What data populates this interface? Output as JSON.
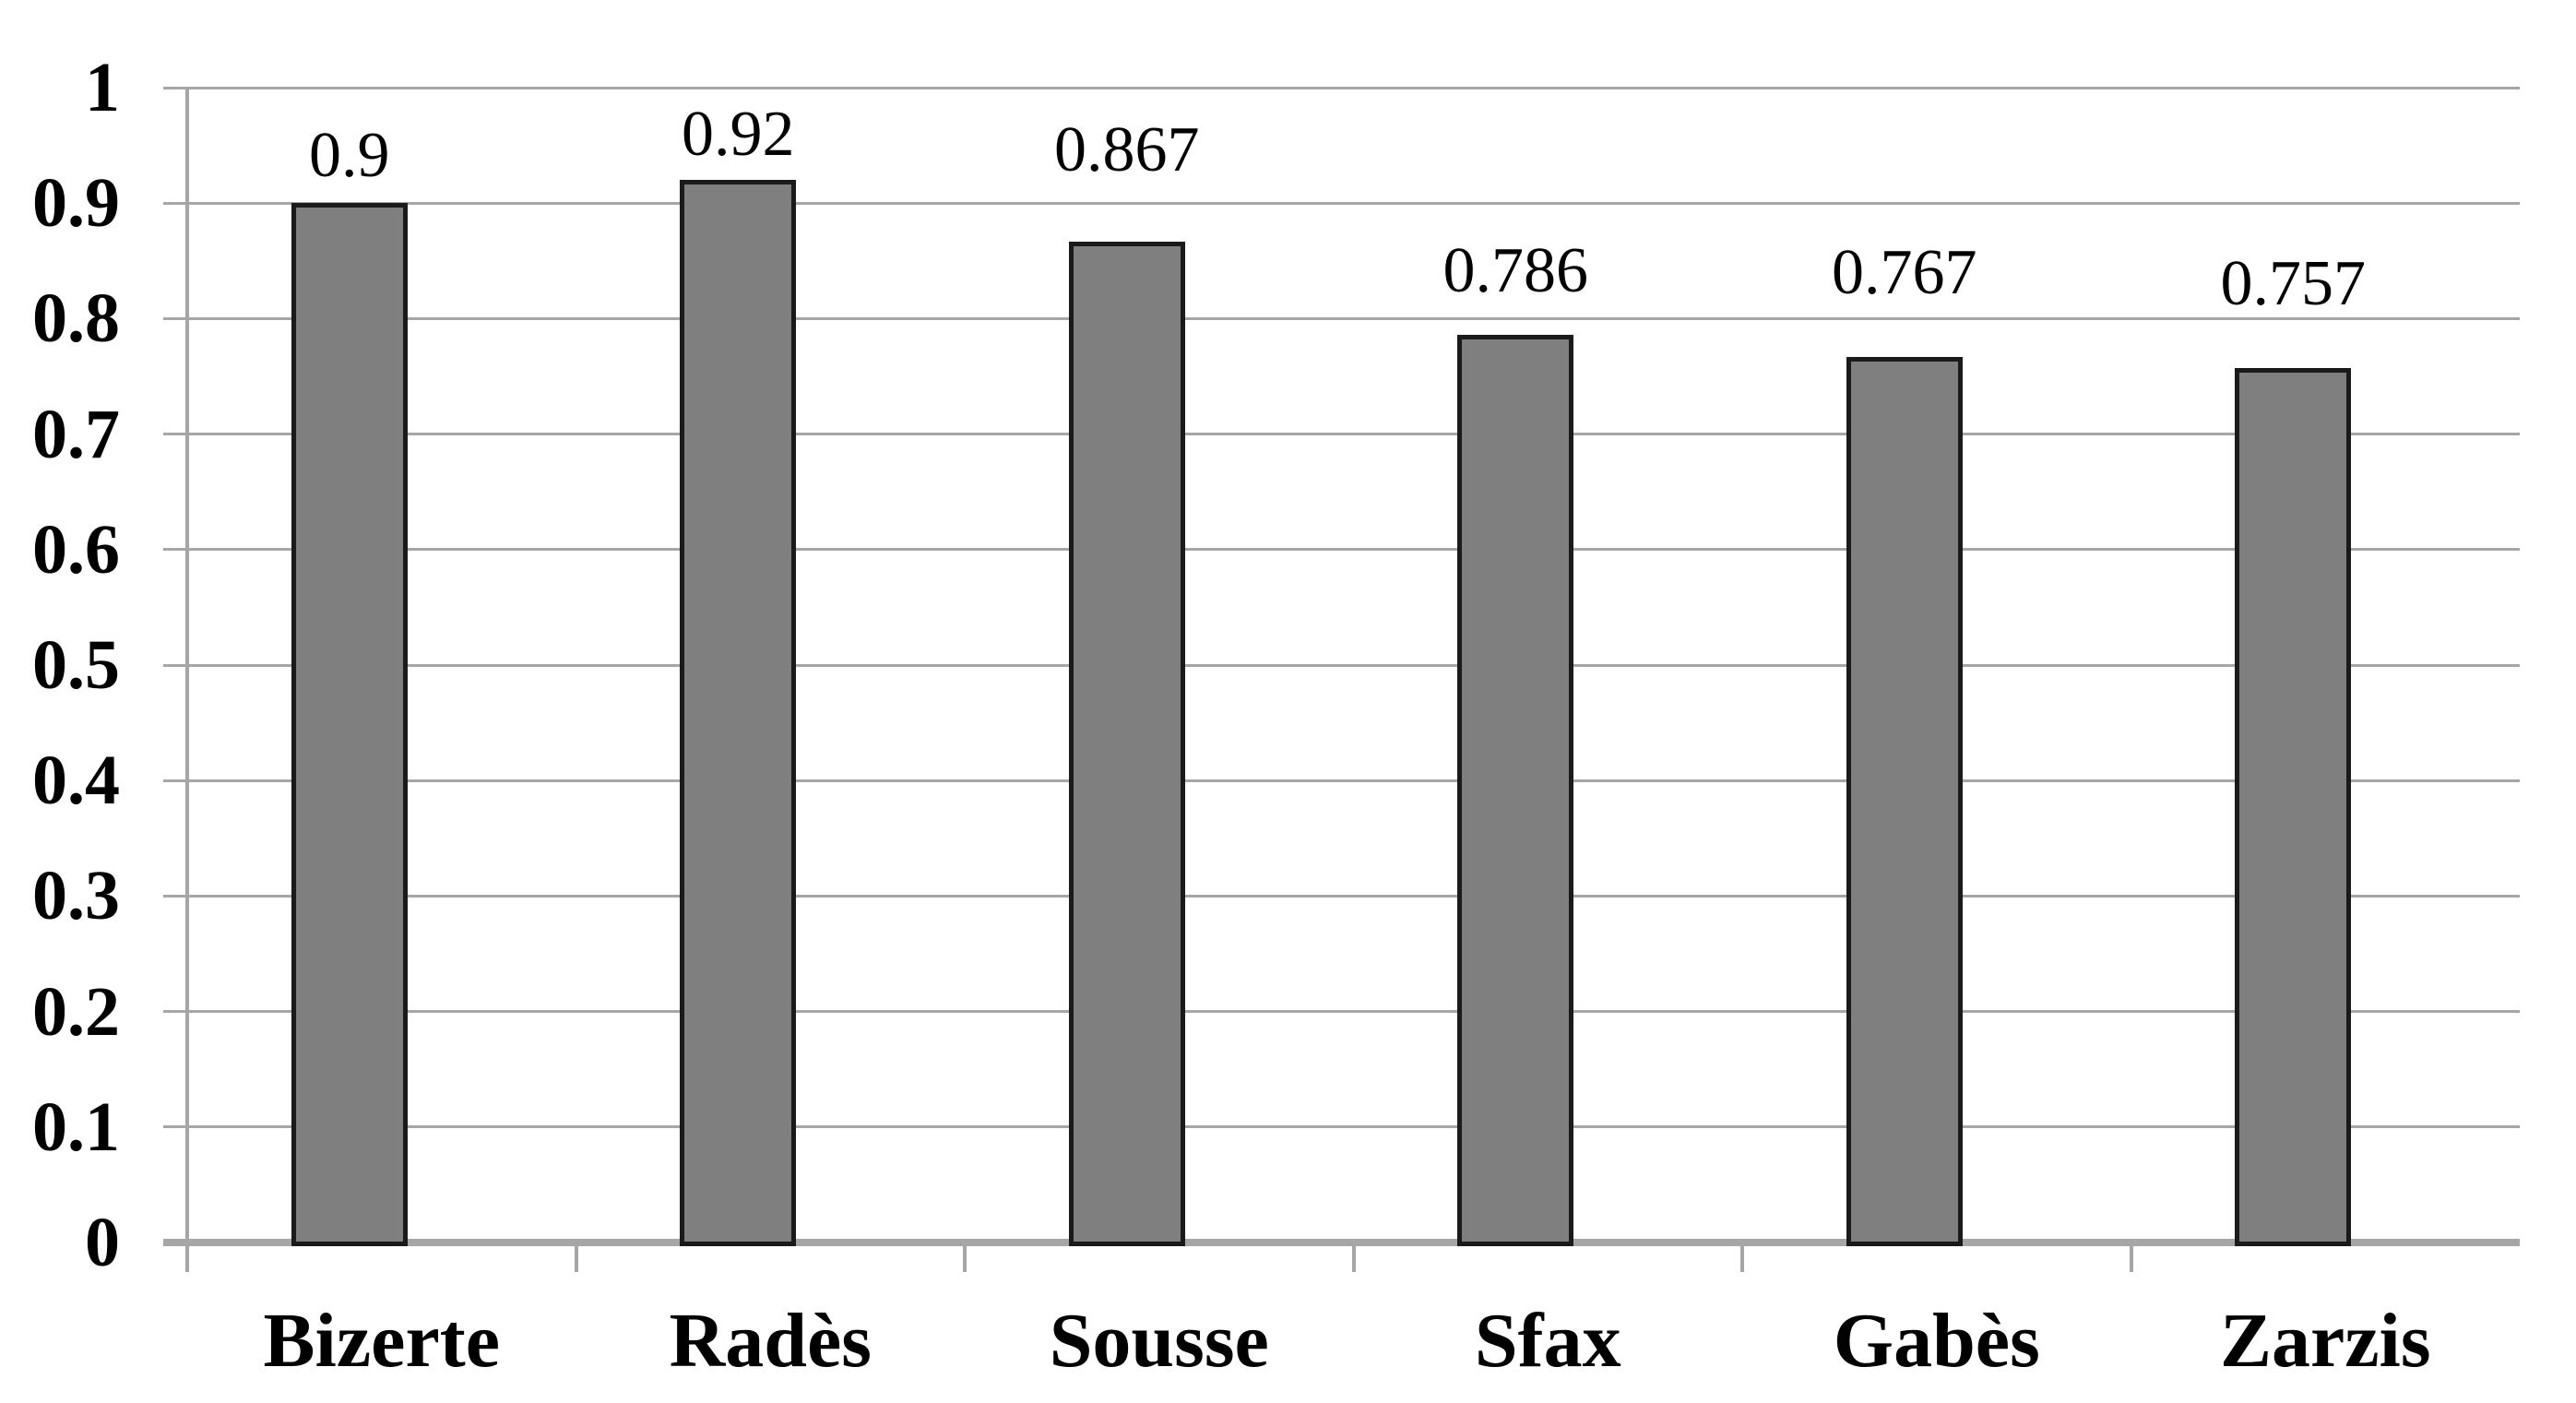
{
  "chart_data": {
    "type": "bar",
    "title": "",
    "categories": [
      "Bizerte",
      "Radès",
      "Sousse",
      "Sfax",
      "Gabès",
      "Zarzis"
    ],
    "values": [
      0.9,
      0.92,
      0.867,
      0.786,
      0.767,
      0.757
    ],
    "value_labels": [
      "0.9",
      "0.92",
      "0.867",
      "0.786",
      "0.767",
      "0.757"
    ],
    "xlabel": "",
    "ylabel": "",
    "ylim": [
      0,
      1
    ],
    "y_tick_values": [
      0,
      0.1,
      0.2,
      0.3,
      0.4,
      0.5,
      0.6,
      0.7,
      0.8,
      0.9,
      1
    ],
    "y_tick_labels": [
      "0",
      "0.1",
      "0.2",
      "0.3",
      "0.4",
      "0.5",
      "0.6",
      "0.7",
      "0.8",
      "0.9",
      "1"
    ],
    "grid": true,
    "legend": false,
    "colors": {
      "bar_fill": "#7f7f7f",
      "bar_border": "#1a1a1a",
      "gridline": "#a6a6a6",
      "axis_line": "#a6a6a6",
      "text": "#000000",
      "background": "#ffffff"
    }
  }
}
